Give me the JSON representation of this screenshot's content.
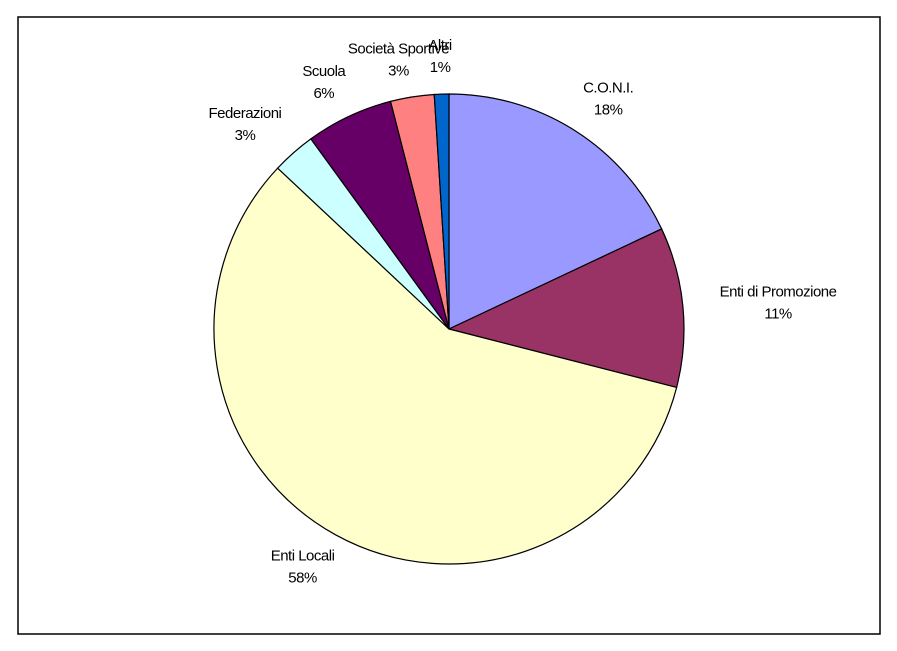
{
  "chart_data": {
    "type": "pie",
    "categories": [
      "C.O.N.I.",
      "Enti di Promozione",
      "Enti Locali",
      "Federazioni",
      "Scuola",
      "Società Sportive",
      "Altri"
    ],
    "values": [
      18,
      11,
      58,
      3,
      6,
      3,
      1
    ],
    "value_labels": [
      "18%",
      "11%",
      "58%",
      "3%",
      "6%",
      "3%",
      "1%"
    ],
    "colors": [
      "#9999ff",
      "#993366",
      "#ffffcc",
      "#ccffff",
      "#660066",
      "#ff8080",
      "#0066cc"
    ]
  }
}
